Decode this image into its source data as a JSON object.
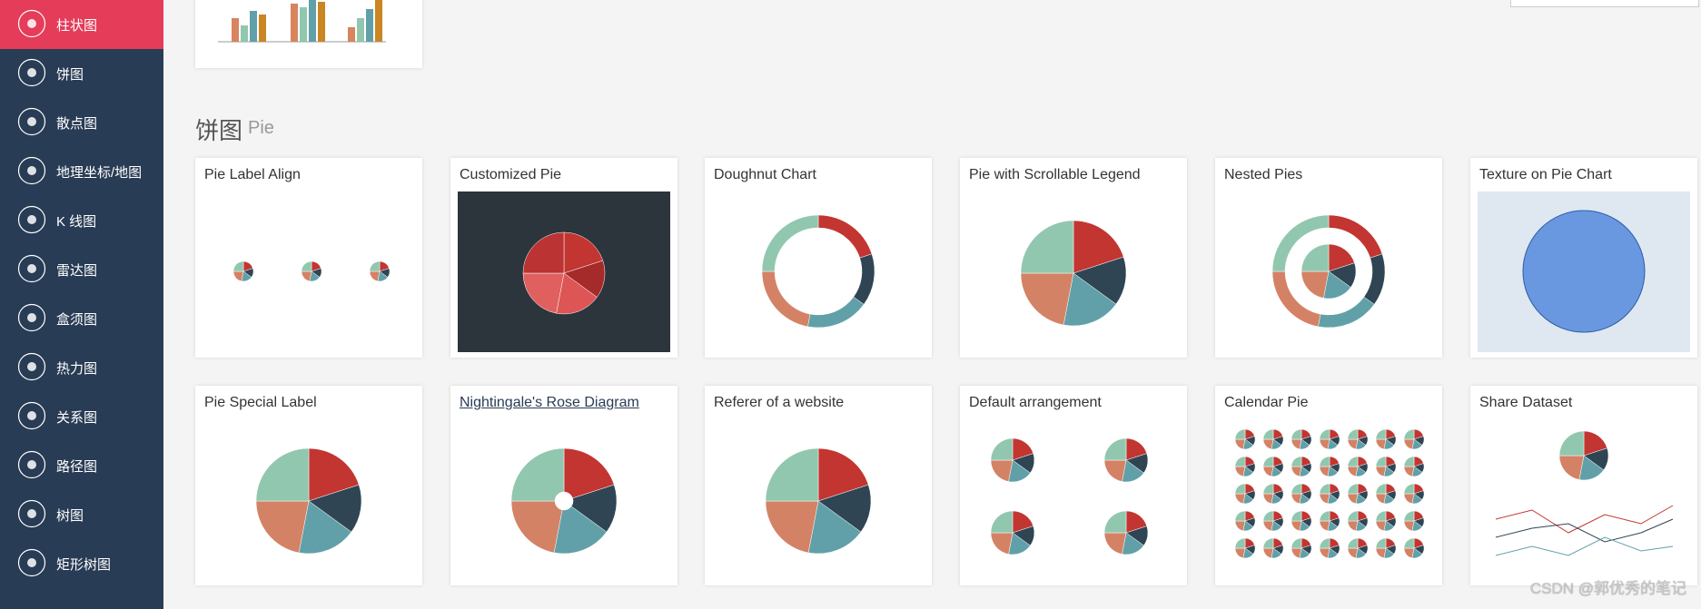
{
  "sidebar": {
    "items": [
      "柱状图",
      "饼图",
      "散点图",
      "地理坐标/地图",
      "K 线图",
      "雷达图",
      "盒须图",
      "热力图",
      "关系图",
      "路径图",
      "树图",
      "矩形树图"
    ]
  },
  "section": {
    "title": "饼图",
    "subtitle": "Pie"
  },
  "cards": [
    {
      "title": "Pie Label Align"
    },
    {
      "title": "Customized Pie"
    },
    {
      "title": "Doughnut Chart"
    },
    {
      "title": "Pie with Scrollable Legend"
    },
    {
      "title": "Nested Pies"
    },
    {
      "title": "Texture on Pie Chart"
    },
    {
      "title": "Pie Special Label"
    },
    {
      "title": "Nightingale's Rose Diagram"
    },
    {
      "title": "Referer of a website"
    },
    {
      "title": "Default arrangement"
    },
    {
      "title": "Calendar Pie"
    },
    {
      "title": "Share Dataset"
    }
  ],
  "watermark": "CSDN @郭优秀的笔记"
}
